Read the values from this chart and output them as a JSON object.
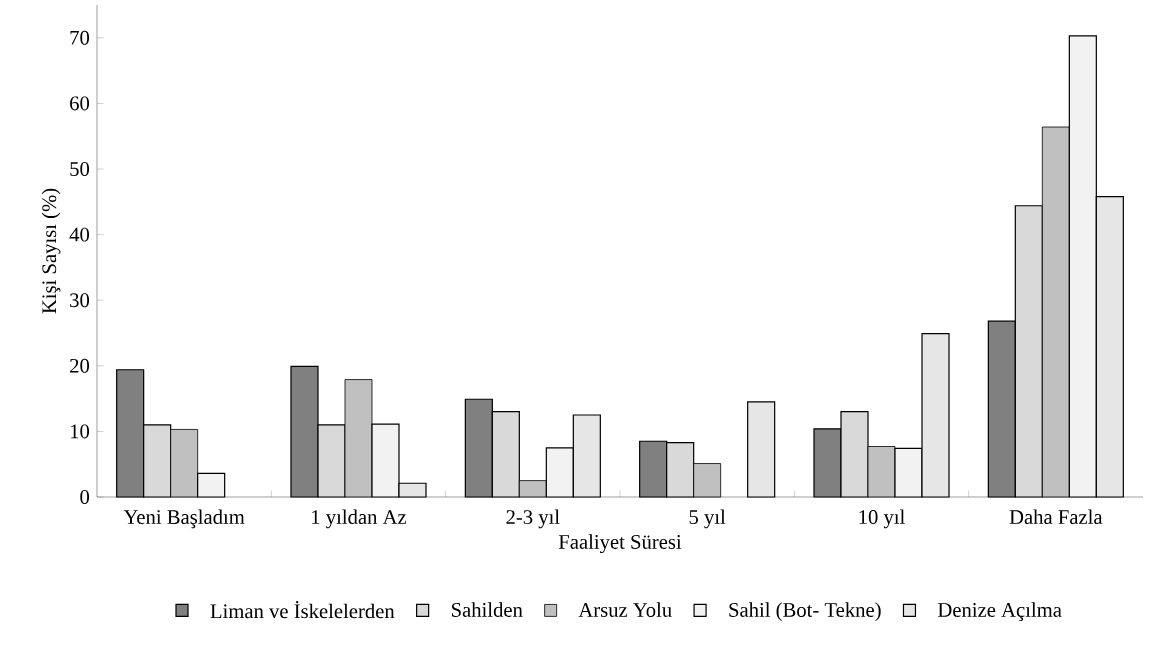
{
  "chart_data": {
    "type": "bar",
    "xlabel": "Faaliyet Süresi",
    "ylabel": "Kişi Sayısı (%)",
    "categories": [
      "Yeni Başladım",
      "1 yıldan Az",
      "2-3 yıl",
      "5 yıl",
      "10 yıl",
      "Daha Fazla"
    ],
    "series": [
      {
        "name": "Liman ve İskelelerden",
        "color": "#808080",
        "values": [
          19.4,
          19.9,
          14.9,
          8.5,
          10.4,
          26.8
        ]
      },
      {
        "name": "Sahilden",
        "color": "#d9d9d9",
        "values": [
          11.0,
          11.0,
          13.0,
          8.3,
          13.0,
          44.4
        ]
      },
      {
        "name": "Arsuz Yolu",
        "color": "#c0c0c0",
        "values": [
          10.3,
          17.9,
          2.5,
          5.1,
          7.7,
          56.4
        ]
      },
      {
        "name": "Sahil (Bot- Tekne)",
        "color": "#f2f2f2",
        "values": [
          3.6,
          11.1,
          7.5,
          null,
          7.4,
          70.3
        ]
      },
      {
        "name": "Denize Açılma",
        "color": "#e6e6e6",
        "values": [
          null,
          2.1,
          12.5,
          14.5,
          24.9,
          45.8
        ]
      }
    ],
    "ylim": [
      0,
      75
    ],
    "yticks": [
      0,
      10,
      20,
      30,
      40,
      50,
      60,
      70
    ],
    "grid": false,
    "legend": "bottom"
  }
}
